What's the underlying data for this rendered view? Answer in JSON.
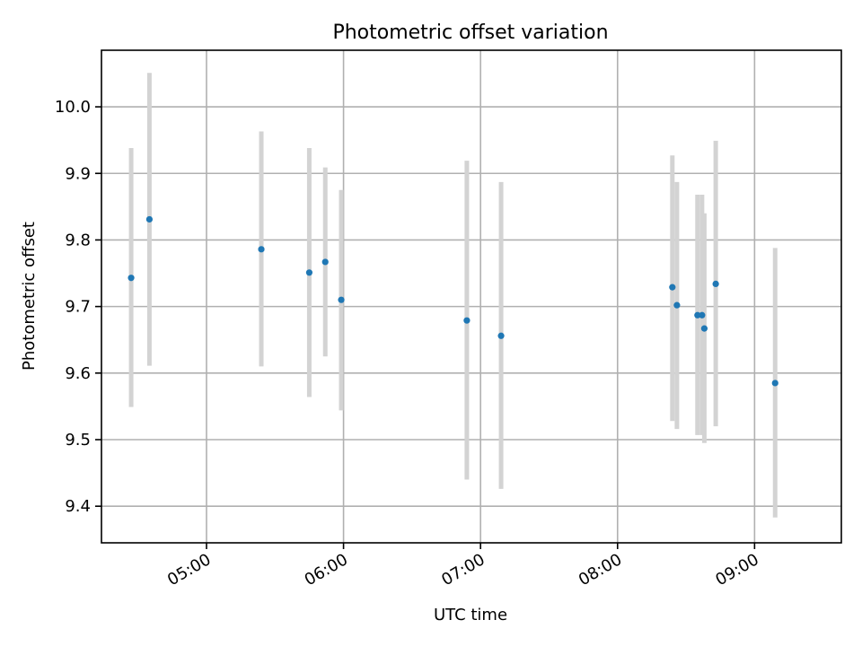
{
  "chart_data": {
    "type": "scatter",
    "title": "Photometric offset variation",
    "xlabel": "UTC time",
    "ylabel": "Photometric offset",
    "x_is_time": true,
    "xlim": [
      "04:14",
      "09:38"
    ],
    "ylim": [
      9.345,
      10.085
    ],
    "xticks": [
      "05:00",
      "06:00",
      "07:00",
      "08:00",
      "09:00"
    ],
    "yticks": [
      9.4,
      9.5,
      9.6,
      9.7,
      9.8,
      9.9,
      10.0
    ],
    "ytick_labels": [
      "9.4",
      "9.5",
      "9.6",
      "9.7",
      "9.8",
      "9.9",
      "10.0"
    ],
    "grid": true,
    "marker_color": "#1f77b4",
    "errorbar_color": "#d3d3d3",
    "series": [
      {
        "x": [
          "04:27",
          "04:35",
          "05:24",
          "05:45",
          "05:52",
          "05:59",
          "06:54",
          "07:09",
          "08:24",
          "08:26",
          "08:35",
          "08:37",
          "08:38",
          "08:43",
          "09:09"
        ],
        "y": [
          9.743,
          9.831,
          9.786,
          9.751,
          9.767,
          9.71,
          9.679,
          9.656,
          9.729,
          9.702,
          9.687,
          9.687,
          9.667,
          9.734,
          9.585
        ],
        "yerr_low": [
          9.549,
          9.611,
          9.61,
          9.564,
          9.625,
          9.544,
          9.44,
          9.426,
          9.528,
          9.516,
          9.507,
          9.507,
          9.495,
          9.52,
          9.383
        ],
        "yerr_high": [
          9.938,
          10.051,
          9.963,
          9.938,
          9.909,
          9.875,
          9.919,
          9.887,
          9.927,
          9.887,
          9.868,
          9.868,
          9.84,
          9.949,
          9.788
        ]
      }
    ]
  }
}
